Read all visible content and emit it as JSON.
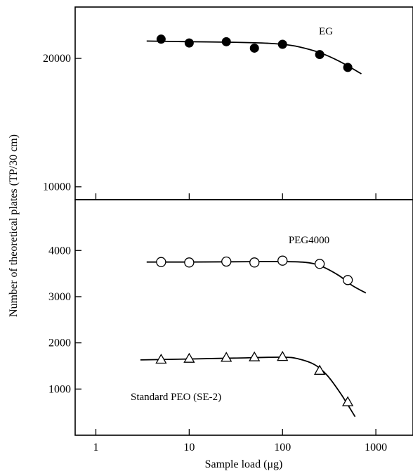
{
  "chart_data": {
    "type": "scatter",
    "x_scale": "log",
    "xlabel": "Sample load (μg)",
    "xlim": [
      0.6,
      2500
    ],
    "x_ticks": [
      {
        "value": 1,
        "label": "1"
      },
      {
        "value": 10,
        "label": "10"
      },
      {
        "value": 100,
        "label": "100"
      },
      {
        "value": 1000,
        "label": "1000"
      }
    ],
    "ylabel": "Number of theoretical plates (TP/30 cm)",
    "grid": false,
    "panels": [
      {
        "id": "upper",
        "ylim": [
          9000,
          24000
        ],
        "y_ticks": [
          {
            "value": 10000,
            "label": "10000"
          },
          {
            "value": 20000,
            "label": "20000"
          }
        ],
        "series": [
          {
            "name": "EG",
            "marker": "filled-circle",
            "x": [
              5,
              10,
              25,
              50,
              100,
              250,
              500
            ],
            "y": [
              21500,
              21200,
              21300,
              20800,
              21100,
              20300,
              19300
            ],
            "fit_x": [
              3.5,
              10,
              30,
              60,
              100,
              150,
              250,
              400,
              700
            ],
            "fit_y": [
              21350,
              21300,
              21260,
              21200,
              21100,
              20900,
              20450,
              19800,
              18800
            ]
          }
        ]
      },
      {
        "id": "lower",
        "ylim": [
          0,
          5100
        ],
        "y_ticks": [
          {
            "value": 1000,
            "label": "1000"
          },
          {
            "value": 2000,
            "label": "2000"
          },
          {
            "value": 3000,
            "label": "3000"
          },
          {
            "value": 4000,
            "label": "4000"
          }
        ],
        "series": [
          {
            "name": "PEG4000",
            "marker": "open-circle",
            "x": [
              5,
              10,
              25,
              50,
              100,
              250,
              500
            ],
            "y": [
              3750,
              3740,
              3760,
              3740,
              3780,
              3710,
              3360
            ],
            "fit_x": [
              3.5,
              10,
              30,
              100,
              180,
              260,
              400,
              550,
              780
            ],
            "fit_y": [
              3750,
              3750,
              3755,
              3760,
              3740,
              3660,
              3460,
              3250,
              3080
            ]
          },
          {
            "name": "Standard PEO (SE-2)",
            "marker": "open-triangle",
            "x": [
              5,
              10,
              25,
              50,
              100,
              250,
              500
            ],
            "y": [
              1640,
              1660,
              1680,
              1690,
              1700,
              1400,
              720
            ],
            "fit_x": [
              3,
              10,
              30,
              100,
              150,
              220,
              300,
              420,
              600
            ],
            "fit_y": [
              1630,
              1650,
              1670,
              1690,
              1650,
              1530,
              1300,
              900,
              400
            ]
          }
        ]
      }
    ]
  }
}
